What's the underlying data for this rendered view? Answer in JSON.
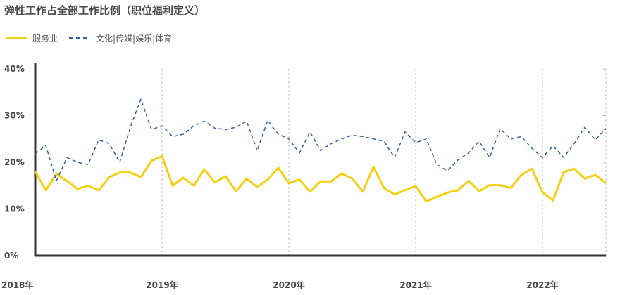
{
  "chart_data": {
    "type": "line",
    "title": "弹性工作占全部工作比例（职位福利定义）",
    "xlabel": "",
    "ylabel": "",
    "ylim": [
      0,
      40
    ],
    "y_ticks": [
      "0%",
      "10%",
      "20%",
      "30%",
      "40%"
    ],
    "x_tick_labels": [
      "2018年",
      "2019年",
      "2020年",
      "2021年",
      "2022年"
    ],
    "grid": "vertical-dashed",
    "legend_placement": "top-left",
    "colors": {
      "series1": "#f5cf14",
      "series2": "#2f5fa6"
    },
    "x": [
      0,
      1,
      2,
      3,
      4,
      5,
      6,
      7,
      8,
      9,
      10,
      11,
      12,
      13,
      14,
      15,
      16,
      17,
      18,
      19,
      20,
      21,
      22,
      23,
      24,
      25,
      26,
      27,
      28,
      29,
      30,
      31,
      32,
      33,
      34,
      35,
      36,
      37,
      38,
      39,
      40,
      41,
      42,
      43,
      44,
      45,
      46,
      47,
      48,
      49,
      50,
      51,
      52,
      53,
      54
    ],
    "series": [
      {
        "name": "服务业",
        "values": [
          18.0,
          14.0,
          17.5,
          16.0,
          14.3,
          15.0,
          14.0,
          16.8,
          17.8,
          17.8,
          16.8,
          20.3,
          21.3,
          15.0,
          16.7,
          15.0,
          18.5,
          15.7,
          17.0,
          13.8,
          16.5,
          14.7,
          16.3,
          18.8,
          15.5,
          16.3,
          13.7,
          15.9,
          15.9,
          17.6,
          16.5,
          13.7,
          19.0,
          14.5,
          13.1,
          14.0,
          14.9,
          11.6,
          12.6,
          13.5,
          14.0,
          16.0,
          13.8,
          15.1,
          15.1,
          14.5,
          17.3,
          18.6,
          13.6,
          11.8,
          17.9,
          18.6,
          16.5,
          17.3,
          15.6
        ]
      },
      {
        "name": "文化|传媒|娱乐|体育",
        "values": [
          21.8,
          23.6,
          16.0,
          21.0,
          20.0,
          19.5,
          24.8,
          24.0,
          20.0,
          27.5,
          33.5,
          27.0,
          27.8,
          25.5,
          26.0,
          27.8,
          28.8,
          27.3,
          27.0,
          27.5,
          28.8,
          22.5,
          29.0,
          26.0,
          25.0,
          22.0,
          26.5,
          22.5,
          24.0,
          25.0,
          25.8,
          25.5,
          25.0,
          24.5,
          21.0,
          26.5,
          24.2,
          25.0,
          19.5,
          18.2,
          20.5,
          22.0,
          24.5,
          21.0,
          27.2,
          25.0,
          25.5,
          23.0,
          21.0,
          23.5,
          21.0,
          24.0,
          27.5,
          24.8,
          27.2
        ]
      }
    ]
  }
}
